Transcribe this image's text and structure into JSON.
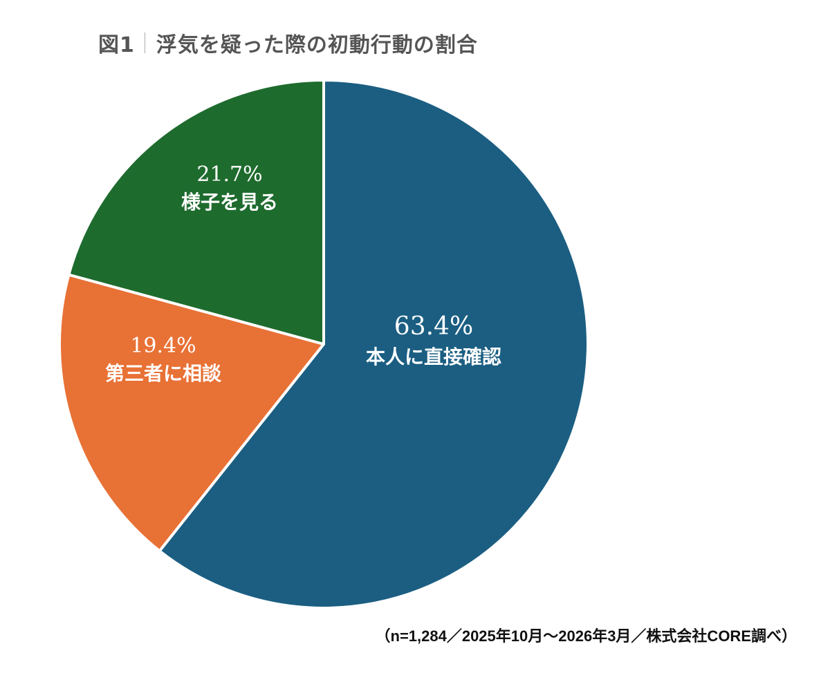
{
  "title": {
    "figure_label": "図1",
    "text": "浮気を疑った際の初動行動の割合"
  },
  "source_note": "（n=1,284／2025年10月～2026年3月／株式会社CORE調べ）",
  "colors": {
    "direct_confirm": "#1B5E82",
    "consult_third_party": "#E87135",
    "wait_and_see": "#1E6B2E",
    "title": "#555555"
  },
  "labels": {
    "direct": {
      "pct": "63.4%",
      "cat": "本人に直接確認"
    },
    "consult": {
      "pct": "19.4%",
      "cat": "第三者に相談"
    },
    "wait": {
      "pct": "21.7%",
      "cat": "様子を見る"
    }
  },
  "chart_data": {
    "type": "pie",
    "title": "図1 浮気を疑った際の初動行動の割合",
    "categories": [
      "本人に直接確認",
      "第三者に相談",
      "様子を見る"
    ],
    "values": [
      63.4,
      19.4,
      21.7
    ],
    "unit": "%",
    "start_angle": "12 o'clock",
    "direction": "clockwise",
    "colors": [
      "#1B5E82",
      "#E87135",
      "#1E6B2E"
    ],
    "legend": "none (labels inside slices)",
    "note": "（n=1,284／2025年10月～2026年3月／株式会社CORE調べ）"
  }
}
